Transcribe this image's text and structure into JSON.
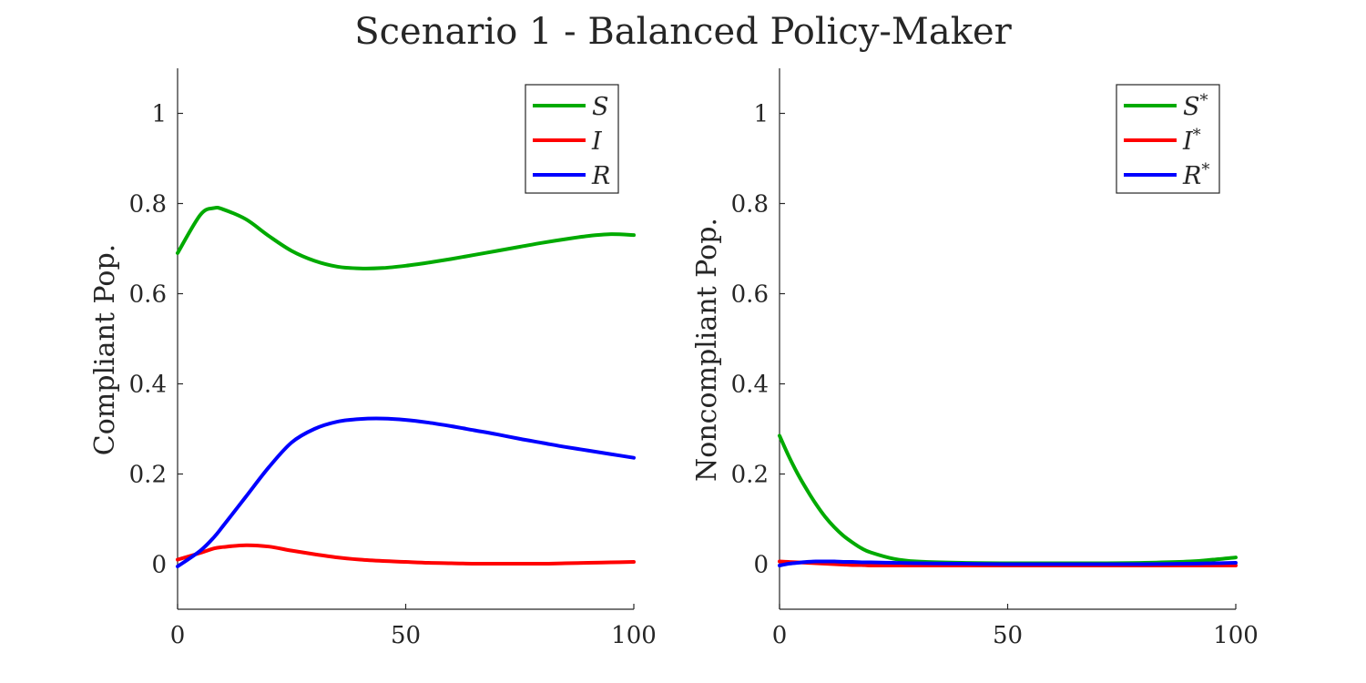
{
  "title": "Scenario 1 - Balanced Policy-Maker",
  "colors": {
    "S": "#00aa00",
    "I": "#ff0000",
    "R": "#0000ff"
  },
  "chart_data": [
    {
      "type": "line",
      "ylabel": "Compliant Pop.",
      "xlim": [
        0,
        100
      ],
      "ylim": [
        -0.1,
        1.1
      ],
      "xticks": [
        "0",
        "50",
        "100"
      ],
      "yticks": [
        "0",
        "0.2",
        "0.4",
        "0.6",
        "0.8",
        "1"
      ],
      "legend_position": "top-right",
      "x": [
        0,
        5,
        8,
        10,
        15,
        20,
        25,
        30,
        35,
        40,
        45,
        50,
        55,
        60,
        65,
        70,
        75,
        80,
        85,
        90,
        95,
        100
      ],
      "series": [
        {
          "name": "S",
          "key": "S",
          "sup": "",
          "values": [
            0.69,
            0.775,
            0.79,
            0.787,
            0.765,
            0.728,
            0.695,
            0.673,
            0.66,
            0.656,
            0.657,
            0.662,
            0.669,
            0.677,
            0.686,
            0.695,
            0.704,
            0.713,
            0.721,
            0.728,
            0.732,
            0.73
          ]
        },
        {
          "name": "I",
          "key": "I",
          "sup": "",
          "values": [
            0.01,
            0.025,
            0.035,
            0.038,
            0.042,
            0.039,
            0.03,
            0.022,
            0.015,
            0.01,
            0.007,
            0.005,
            0.003,
            0.002,
            0.001,
            0.001,
            0.001,
            0.001,
            0.002,
            0.003,
            0.004,
            0.005
          ]
        },
        {
          "name": "R",
          "key": "R",
          "sup": "",
          "values": [
            -0.005,
            0.03,
            0.06,
            0.085,
            0.15,
            0.215,
            0.27,
            0.3,
            0.316,
            0.322,
            0.323,
            0.32,
            0.314,
            0.306,
            0.297,
            0.288,
            0.278,
            0.269,
            0.26,
            0.252,
            0.244,
            0.236
          ]
        }
      ]
    },
    {
      "type": "line",
      "ylabel": "Noncompliant Pop.",
      "xlim": [
        0,
        100
      ],
      "ylim": [
        -0.1,
        1.1
      ],
      "xticks": [
        "0",
        "50",
        "100"
      ],
      "yticks": [
        "0",
        "0.2",
        "0.4",
        "0.6",
        "0.8",
        "1"
      ],
      "legend_position": "top-right",
      "x": [
        0,
        2,
        4,
        6,
        8,
        10,
        12,
        14,
        16,
        18,
        20,
        25,
        30,
        40,
        50,
        60,
        70,
        80,
        90,
        95,
        100
      ],
      "series": [
        {
          "name": "S*",
          "key": "S",
          "sup": "*",
          "values": [
            0.285,
            0.24,
            0.2,
            0.165,
            0.133,
            0.105,
            0.082,
            0.063,
            0.048,
            0.035,
            0.026,
            0.012,
            0.006,
            0.003,
            0.002,
            0.002,
            0.002,
            0.003,
            0.006,
            0.01,
            0.015
          ]
        },
        {
          "name": "I*",
          "key": "I",
          "sup": "*",
          "values": [
            0.006,
            0.005,
            0.004,
            0.003,
            0.002,
            0.001,
            0.0,
            -0.001,
            -0.002,
            -0.002,
            -0.003,
            -0.003,
            -0.003,
            -0.003,
            -0.003,
            -0.003,
            -0.003,
            -0.003,
            -0.003,
            -0.003,
            -0.003
          ]
        },
        {
          "name": "R*",
          "key": "R",
          "sup": "*",
          "values": [
            -0.003,
            0.001,
            0.003,
            0.005,
            0.006,
            0.006,
            0.006,
            0.005,
            0.005,
            0.004,
            0.004,
            0.003,
            0.002,
            0.001,
            0.0,
            0.0,
            0.0,
            0.0,
            0.001,
            0.002,
            0.003
          ]
        }
      ]
    }
  ]
}
